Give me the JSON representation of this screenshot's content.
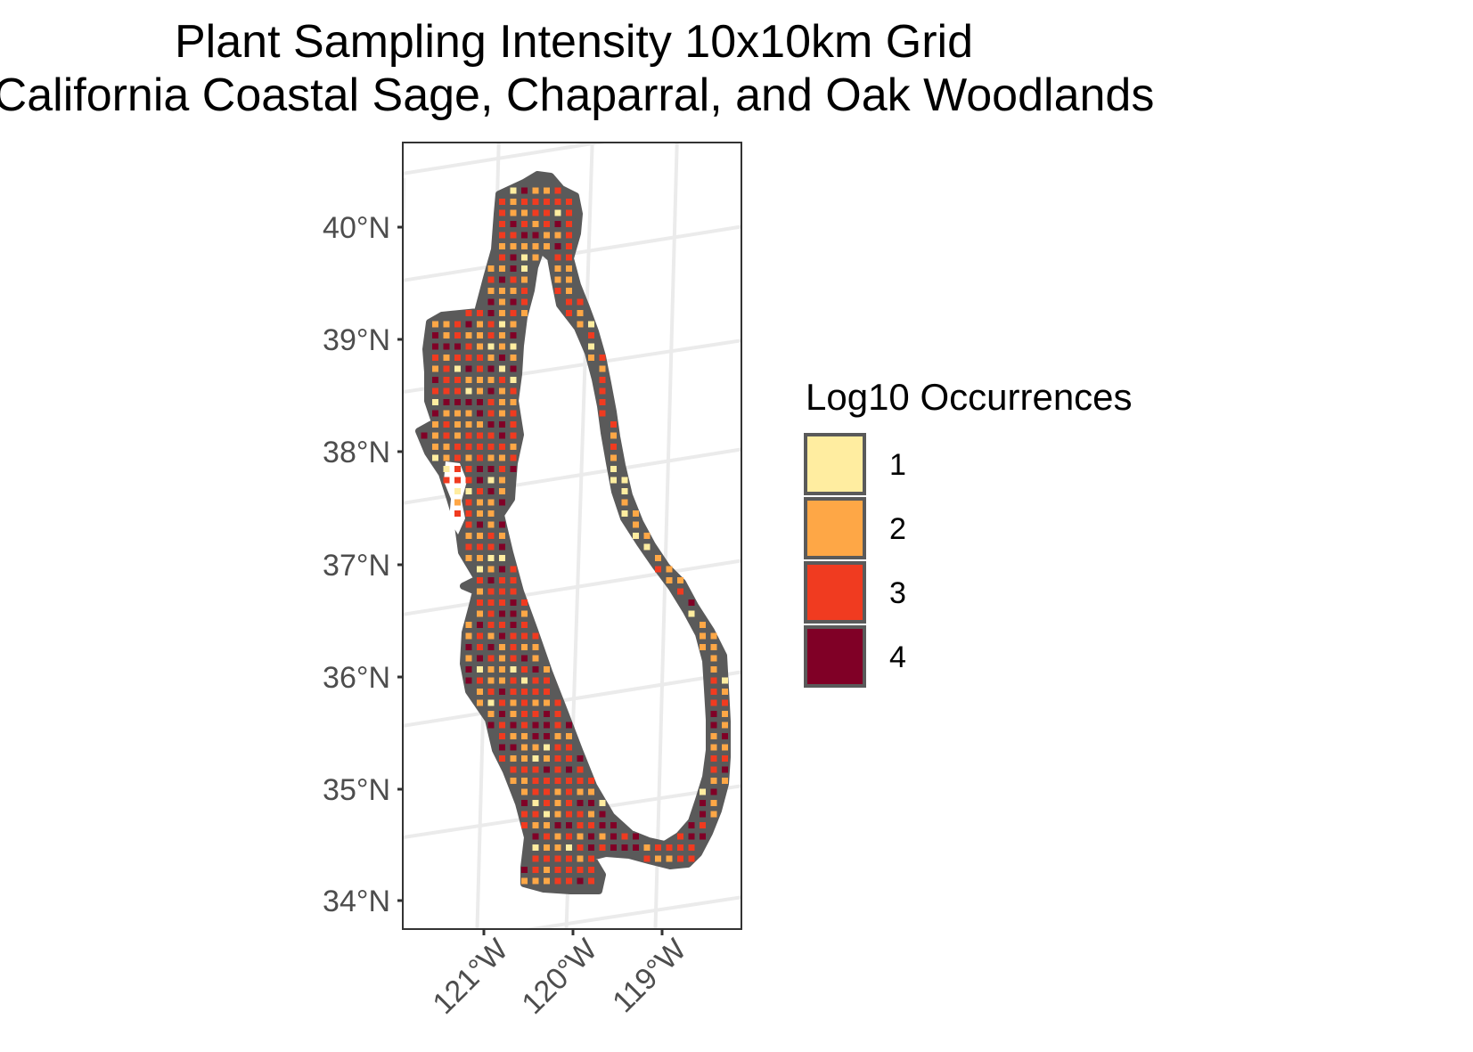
{
  "title": {
    "line1": "Plant Sampling Intensity 10x10km Grid",
    "line2": "California Coastal Sage, Chaparral, and Oak Woodlands"
  },
  "axes": {
    "y_ticks": [
      "40°N",
      "39°N",
      "38°N",
      "37°N",
      "36°N",
      "35°N",
      "34°N"
    ],
    "x_ticks": [
      "121°W",
      "120°W",
      "119°W"
    ]
  },
  "legend": {
    "title": "Log10 Occurrences",
    "placement": "right",
    "items": [
      {
        "label": "1",
        "color": "#FFEDA0"
      },
      {
        "label": "2",
        "color": "#FEA746"
      },
      {
        "label": "3",
        "color": "#F03B20"
      },
      {
        "label": "4",
        "color": "#800026"
      }
    ]
  },
  "colors": {
    "region_fill": "#5a5a5a",
    "graticule": "#ebebeb",
    "panel_border": "#333333"
  }
}
